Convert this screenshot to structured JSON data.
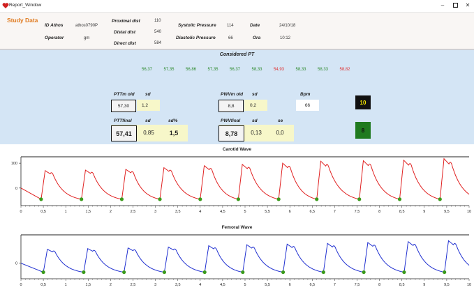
{
  "window": {
    "title": "Report_Window"
  },
  "study": {
    "title": "Study Data",
    "id_label": "ID Athos",
    "id_value": "athos0790P",
    "operator_label": "Operator",
    "operator_value": "gm",
    "proximal_label": "Proximal dist",
    "proximal_value": "110",
    "distal_label": "Distal dist",
    "distal_value": "540",
    "direct_label": "Direct dist",
    "direct_value": "584",
    "systolic_label": "Systolic Pressure",
    "systolic_value": "114",
    "diastolic_label": "Diastolic Pressure",
    "diastolic_value": "66",
    "date_label": "Date",
    "date_value": "24/10/18",
    "ora_label": "Ora",
    "ora_value": "10:12"
  },
  "considered": {
    "title": "Considered PT",
    "values": [
      {
        "v": "56,37",
        "c": "#2e8b2e"
      },
      {
        "v": "57,35",
        "c": "#2e8b2e"
      },
      {
        "v": "56,86",
        "c": "#2e8b2e"
      },
      {
        "v": "57,35",
        "c": "#2e8b2e"
      },
      {
        "v": "56,37",
        "c": "#2e8b2e"
      },
      {
        "v": "58,33",
        "c": "#2e8b2e"
      },
      {
        "v": "54,93",
        "c": "#e03030"
      },
      {
        "v": "58,33",
        "c": "#2e8b2e"
      },
      {
        "v": "58,33",
        "c": "#2e8b2e"
      },
      {
        "v": "58,82",
        "c": "#e03030"
      }
    ]
  },
  "metrics": {
    "pttm_old_label": "PTTm old",
    "pttm_old_value": "57,30",
    "pttm_sd_label": "sd",
    "pttm_sd_value": "1,2",
    "pwvm_old_label": "PWVm old",
    "pwvm_old_value": "8,8",
    "pwvm_sd_label": "sd",
    "pwvm_sd_value": "0,2",
    "bpm_label": "Bpm",
    "bpm_value": "66",
    "count_top": "10",
    "ptt_final_label": "PTTfinal",
    "ptt_final_value": "57,41",
    "ptt_final_sd_label": "sd",
    "ptt_final_sd_value": "0,85",
    "ptt_final_sdp_label": "sd%",
    "ptt_final_sdp_value": "1,5",
    "pwv_final_label": "PWVfinal",
    "pwv_final_value": "8,78",
    "pwv_final_sd_label": "sd",
    "pwv_final_sd_value": "0,13",
    "pwv_final_se_label": "se",
    "pwv_final_se_value": "0,0",
    "count_bottom": "8",
    "colors": {
      "count_top_bg": "#111111",
      "count_top_fg": "#f5e600",
      "count_bottom_bg": "#1f7a1f",
      "count_bottom_fg": "#111111"
    }
  },
  "chart_data": [
    {
      "type": "line",
      "title": "Carotid Wave",
      "xlim": [
        0,
        10
      ],
      "ylim": [
        -65,
        120
      ],
      "x_ticks": [
        "0",
        "0,5",
        "1",
        "1,5",
        "2",
        "2,5",
        "3",
        "3,5",
        "4",
        "4,5",
        "5",
        "5,5",
        "6",
        "6,5",
        "7",
        "7,5",
        "8",
        "8,5",
        "9",
        "9,5",
        "10"
      ],
      "y_ticks": [
        "100",
        "0"
      ],
      "color": "#e02020",
      "marker_color": "#3a9a1a",
      "beat_feet_x": [
        0.45,
        1.35,
        2.25,
        3.1,
        4.0,
        4.85,
        5.75,
        6.6,
        7.55,
        8.45,
        9.35
      ],
      "peak_y": [
        70,
        72,
        75,
        82,
        90,
        95,
        100,
        108,
        110,
        112,
        118
      ],
      "foot_y": -45
    },
    {
      "type": "line",
      "title": "Femoral Wave",
      "xlim": [
        0,
        10
      ],
      "ylim": [
        -60,
        120
      ],
      "x_ticks": [
        "0",
        "0,5",
        "1",
        "1,5",
        "2",
        "2,5",
        "3",
        "3,5",
        "4",
        "4,5",
        "5",
        "5,5",
        "6",
        "6,5",
        "7",
        "7,5",
        "8",
        "8,5",
        "9",
        "9,5",
        "10"
      ],
      "y_ticks": [
        "0"
      ],
      "color": "#2030d0",
      "marker_color": "#3a9a1a",
      "beat_feet_x": [
        0.5,
        1.4,
        2.3,
        3.2,
        4.1,
        4.95,
        5.85,
        6.75,
        7.65,
        8.55,
        9.45
      ],
      "peak_y": [
        62,
        65,
        68,
        72,
        78,
        82,
        85,
        88,
        92,
        96,
        100
      ],
      "foot_y": -40
    }
  ]
}
